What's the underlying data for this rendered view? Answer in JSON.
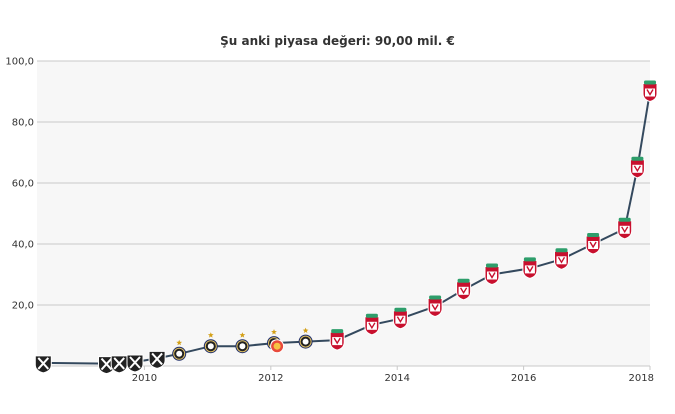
{
  "chart_data": {
    "type": "line",
    "title": "Şu anki piyasa değeri: 90,00 mil. €",
    "xlabel": "",
    "ylabel": "",
    "ylim": [
      0,
      100
    ],
    "xlim": [
      2008.3,
      2018.0
    ],
    "y_ticks": [
      {
        "value": 20,
        "label": "20,0"
      },
      {
        "value": 40,
        "label": "40,0"
      },
      {
        "value": 60,
        "label": "60,0"
      },
      {
        "value": 80,
        "label": "80,0"
      },
      {
        "value": 100,
        "label": "100,0"
      }
    ],
    "x_ticks": [
      {
        "value": 2010,
        "label": "2010"
      },
      {
        "value": 2012,
        "label": "2012"
      },
      {
        "value": 2014,
        "label": "2014"
      },
      {
        "value": 2016,
        "label": "2016"
      },
      {
        "value": 2018,
        "label": "2018"
      }
    ],
    "grid": true,
    "colors": {
      "line": "#34495e",
      "plot_bg": "#f7f7f7",
      "grid": "#c8c8c8",
      "club_vasco": "#222222",
      "club_inter": "#1f2e6b",
      "club_liverpool": "#c8102e",
      "club_galatasaray": "#e84a3c"
    },
    "series": [
      {
        "points": [
          {
            "x": 2008.4,
            "y": 1.0,
            "club": "vasco"
          },
          {
            "x": 2009.4,
            "y": 0.8,
            "club": "vasco"
          },
          {
            "x": 2009.6,
            "y": 1.0,
            "club": "vasco"
          },
          {
            "x": 2009.85,
            "y": 1.3,
            "club": "vasco"
          },
          {
            "x": 2010.2,
            "y": 2.5,
            "club": "vasco"
          },
          {
            "x": 2010.55,
            "y": 4.0,
            "club": "inter"
          },
          {
            "x": 2011.05,
            "y": 6.5,
            "club": "inter"
          },
          {
            "x": 2011.55,
            "y": 6.5,
            "club": "inter"
          },
          {
            "x": 2012.05,
            "y": 7.5,
            "club": "inter"
          },
          {
            "x": 2012.1,
            "y": 6.5,
            "club": "galatasaray"
          },
          {
            "x": 2012.55,
            "y": 8.0,
            "club": "inter"
          },
          {
            "x": 2013.05,
            "y": 8.5,
            "club": "liverpool"
          },
          {
            "x": 2013.6,
            "y": 13.5,
            "club": "liverpool"
          },
          {
            "x": 2014.05,
            "y": 15.5,
            "club": "liverpool"
          },
          {
            "x": 2014.6,
            "y": 19.5,
            "club": "liverpool"
          },
          {
            "x": 2015.05,
            "y": 25.0,
            "club": "liverpool"
          },
          {
            "x": 2015.5,
            "y": 30.0,
            "club": "liverpool"
          },
          {
            "x": 2016.1,
            "y": 32.0,
            "club": "liverpool"
          },
          {
            "x": 2016.6,
            "y": 35.0,
            "club": "liverpool"
          },
          {
            "x": 2017.1,
            "y": 40.0,
            "club": "liverpool"
          },
          {
            "x": 2017.6,
            "y": 45.0,
            "club": "liverpool"
          },
          {
            "x": 2017.8,
            "y": 65.0,
            "club": "liverpool"
          },
          {
            "x": 2018.0,
            "y": 90.0,
            "club": "liverpool"
          }
        ]
      }
    ]
  }
}
